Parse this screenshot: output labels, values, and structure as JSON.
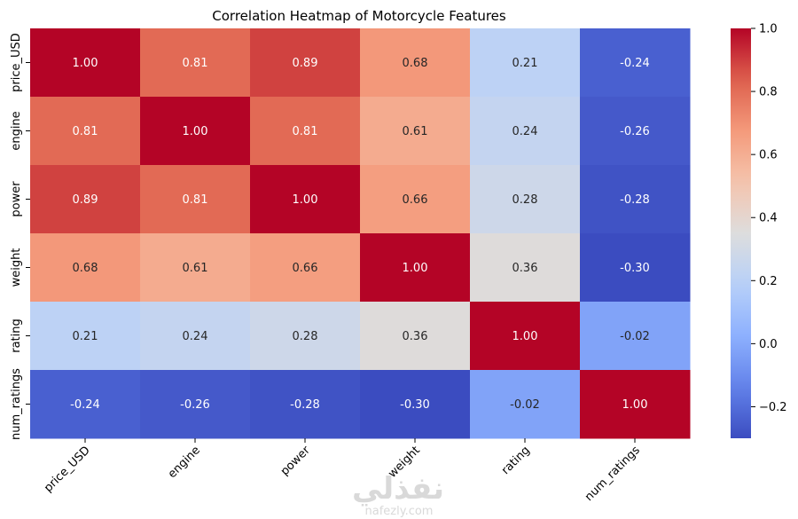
{
  "chart_data": {
    "type": "heatmap",
    "title": "Correlation Heatmap of Motorcycle Features",
    "x_categories": [
      "price_USD",
      "engine",
      "power",
      "weight",
      "rating",
      "num_ratings"
    ],
    "y_categories": [
      "price_USD",
      "engine",
      "power",
      "weight",
      "rating",
      "num_ratings"
    ],
    "values": [
      [
        1.0,
        0.81,
        0.89,
        0.68,
        0.21,
        -0.24
      ],
      [
        0.81,
        1.0,
        0.81,
        0.61,
        0.24,
        -0.26
      ],
      [
        0.89,
        0.81,
        1.0,
        0.66,
        0.28,
        -0.28
      ],
      [
        0.68,
        0.61,
        0.66,
        1.0,
        0.36,
        -0.3
      ],
      [
        0.21,
        0.24,
        0.28,
        0.36,
        1.0,
        -0.02
      ],
      [
        -0.24,
        -0.26,
        -0.28,
        -0.3,
        -0.02,
        1.0
      ]
    ],
    "value_format": "0.00",
    "colormap": "coolwarm",
    "color_range": [
      -0.3,
      1.0
    ],
    "colorbar_ticks": [
      -0.2,
      0.0,
      0.2,
      0.4,
      0.6,
      0.8,
      1.0
    ],
    "colorbar_tick_labels": [
      "−0.2",
      "0.0",
      "0.2",
      "0.4",
      "0.6",
      "0.8",
      "1.0"
    ],
    "colorbar_position": "right"
  },
  "watermark": {
    "arabic": "نفذلي",
    "latin": "nafezly.com"
  }
}
